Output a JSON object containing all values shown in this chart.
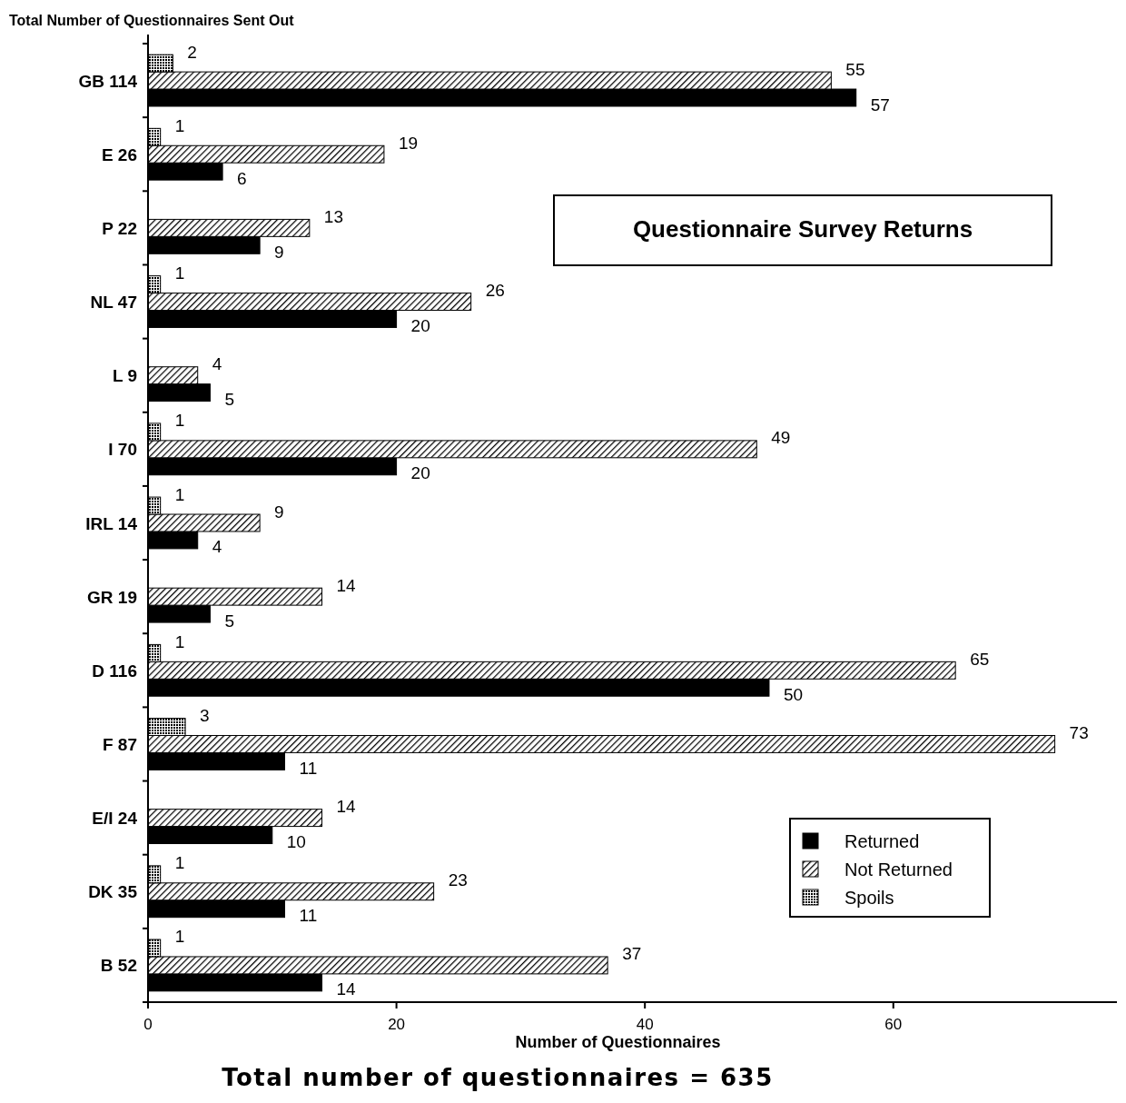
{
  "chart_data": {
    "type": "bar",
    "orientation": "horizontal",
    "title": "Questionnaire Survey Returns",
    "ylabel": "Total Number of Questionnaires Sent Out",
    "xlabel": "Number of Questionnaires",
    "annotations": [
      "Total number of questionnaires = 635"
    ],
    "categories": [
      "GB 114",
      "E 26",
      "P 22",
      "NL 47",
      "L 9",
      "I 70",
      "IRL 14",
      "GR 19",
      "D 116",
      "F 87",
      "E/I 24",
      "DK 35",
      "B 52"
    ],
    "series": [
      {
        "name": "Returned",
        "color": "#000000",
        "values": [
          57,
          6,
          9,
          20,
          5,
          20,
          4,
          5,
          50,
          11,
          10,
          11,
          14
        ]
      },
      {
        "name": "Not Returned",
        "color": "#000000",
        "values": [
          55,
          19,
          13,
          26,
          4,
          49,
          9,
          14,
          65,
          73,
          14,
          23,
          37
        ]
      },
      {
        "name": "Spoils",
        "color": "#000000",
        "values": [
          2,
          1,
          null,
          1,
          null,
          1,
          1,
          null,
          1,
          3,
          null,
          1,
          1
        ]
      }
    ],
    "xlim": [
      0,
      78
    ],
    "xticks": [
      0,
      20,
      40,
      60
    ],
    "data_labels": true,
    "legend": "bottom right",
    "grid": false
  }
}
